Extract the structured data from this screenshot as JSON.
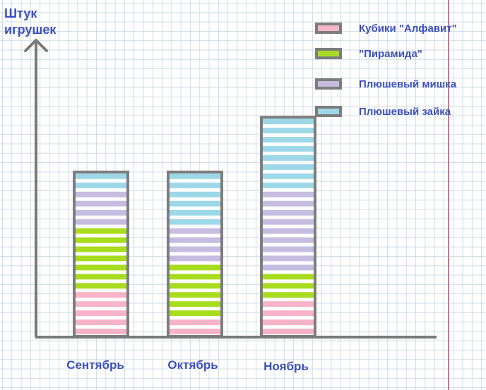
{
  "chart_data": {
    "type": "bar",
    "stacked": true,
    "title": "",
    "ylabel": [
      "Штук",
      "игрушек"
    ],
    "xlabel": "",
    "categories": [
      "Сентябрь",
      "Октябрь",
      "Ноябрь"
    ],
    "series": [
      {
        "name": "Кубики \"Алфавит\"",
        "color": "#f7b3c8",
        "values": [
          5,
          2,
          4
        ]
      },
      {
        "name": "\"Пирамида\"",
        "color": "#a8dc1e",
        "values": [
          7,
          6,
          3
        ]
      },
      {
        "name": "Плюшевый мишка",
        "color": "#c5bce0",
        "values": [
          4,
          4,
          9
        ]
      },
      {
        "name": "Плюшевый зайка",
        "color": "#9dd8e8",
        "values": [
          2,
          6,
          8
        ]
      }
    ],
    "ylim": [
      0,
      24
    ],
    "grid": true,
    "legend_position": "top-right"
  }
}
